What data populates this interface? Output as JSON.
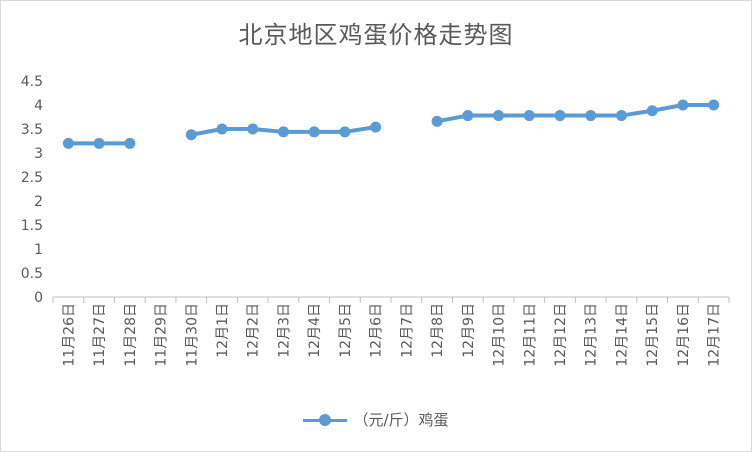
{
  "chart_data": {
    "type": "line",
    "title": "北京地区鸡蛋价格走势图",
    "categories": [
      "11月26日",
      "11月27日",
      "11月28日",
      "11月29日",
      "11月30日",
      "12月1日",
      "12月2日",
      "12月3日",
      "12月4日",
      "12月5日",
      "12月6日",
      "12月7日",
      "12月8日",
      "12月9日",
      "12月10日",
      "12月11日",
      "12月12日",
      "12月13日",
      "12月14日",
      "12月15日",
      "12月16日",
      "12月17日"
    ],
    "series": [
      {
        "name": "（元/斤）鸡蛋",
        "values": [
          3.2,
          3.2,
          3.2,
          null,
          3.38,
          3.5,
          3.5,
          3.44,
          3.44,
          3.44,
          3.54,
          null,
          3.66,
          3.78,
          3.78,
          3.78,
          3.78,
          3.78,
          3.78,
          3.88,
          4.0,
          4.0
        ],
        "color": "#5b9bd5"
      }
    ],
    "yticks": [
      "0",
      "0.5",
      "1",
      "1.5",
      "2",
      "2.5",
      "3",
      "3.5",
      "4",
      "4.5"
    ],
    "ylim": [
      0,
      4.5
    ],
    "grid": false,
    "legend_position": "bottom"
  }
}
